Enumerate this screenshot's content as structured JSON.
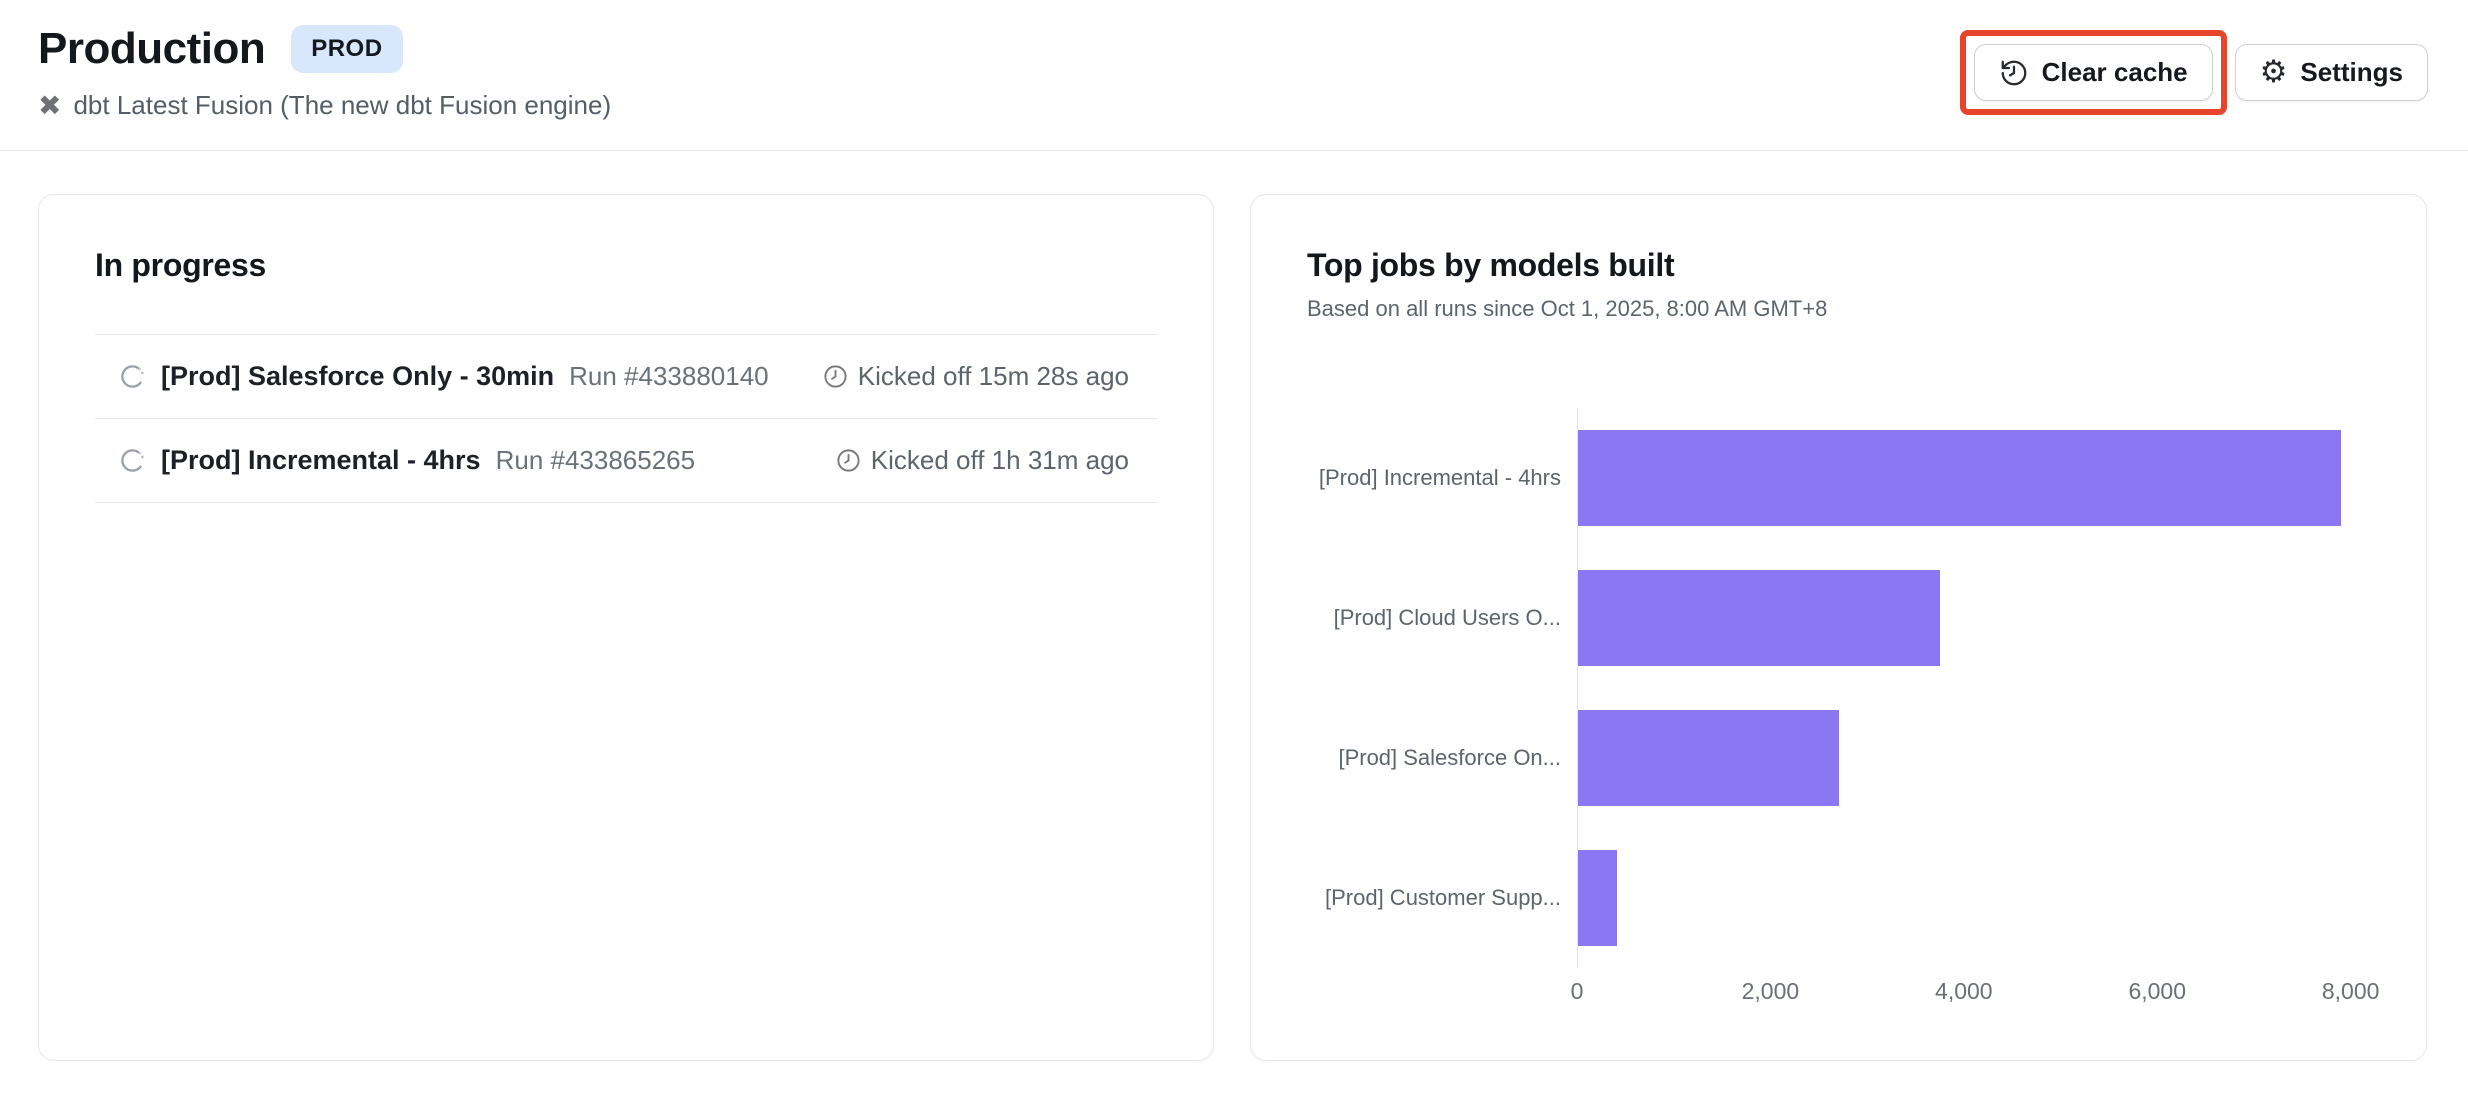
{
  "header": {
    "title": "Production",
    "badge": "PROD",
    "subtitle": "dbt Latest Fusion (The new dbt Fusion engine)",
    "annotation_color": "#e8432b",
    "actions": [
      {
        "label": "Clear cache",
        "icon": "history-icon"
      },
      {
        "label": "Settings",
        "icon": "gear-icon"
      }
    ]
  },
  "in_progress": {
    "title": "In progress",
    "runs": [
      {
        "name": "[Prod] Salesforce Only - 30min",
        "run_id": "Run #433880140",
        "kicked_off": "Kicked off 15m 28s ago"
      },
      {
        "name": "[Prod] Incremental - 4hrs",
        "run_id": "Run #433865265",
        "kicked_off": "Kicked off 1h 31m ago"
      }
    ]
  },
  "top_jobs": {
    "title": "Top jobs by models built",
    "subtitle": "Based on all runs since Oct 1, 2025, 8:00 AM GMT+8"
  },
  "chart_data": {
    "type": "bar",
    "orientation": "horizontal",
    "title": "Top jobs by models built",
    "categories": [
      "[Prod] Incremental - 4hrs",
      "[Prod] Cloud Users O...",
      "[Prod] Salesforce On...",
      "[Prod] Customer Supp..."
    ],
    "values": [
      7900,
      3750,
      2700,
      400
    ],
    "xticks": [
      0,
      2000,
      4000,
      6000,
      8000
    ],
    "xtick_labels": [
      "0",
      "2,000",
      "4,000",
      "6,000",
      "8,000"
    ],
    "xlim": [
      0,
      8200
    ],
    "xlabel": "",
    "ylabel": "",
    "bar_color": "#8b77f2",
    "grid": false,
    "legend": false
  },
  "icons": {
    "dbt_glyph": "✖",
    "gear_glyph": "⚙"
  }
}
